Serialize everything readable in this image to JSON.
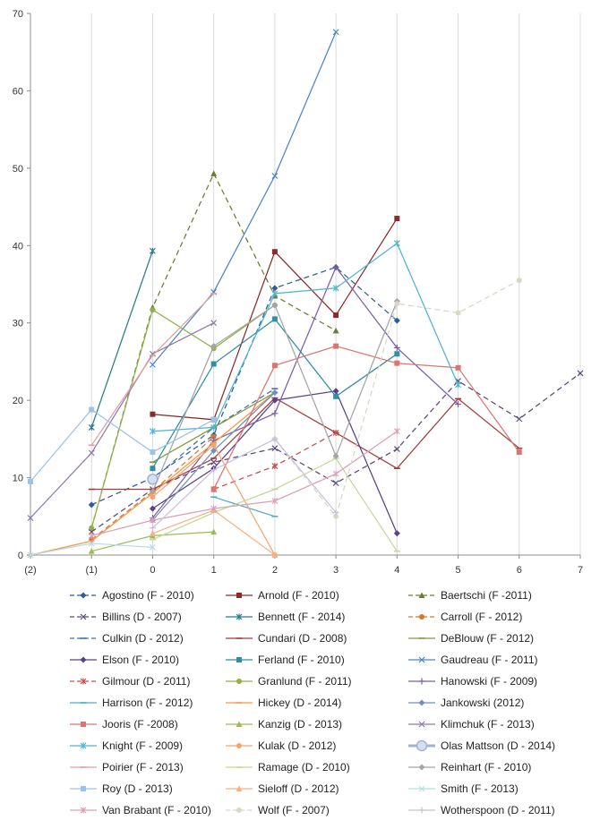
{
  "chart_data": {
    "type": "line",
    "title": "",
    "xlabel": "",
    "ylabel": "",
    "x_categories": [
      "(2)",
      "(1)",
      "0",
      "1",
      "2",
      "3",
      "4",
      "5",
      "6",
      "7"
    ],
    "ylim": [
      0,
      70
    ],
    "y_ticks": [
      0,
      10,
      20,
      30,
      40,
      50,
      60,
      70
    ],
    "grid": "vertical lines only",
    "legend": "bottom, 3 columns",
    "series": [
      {
        "name": "Agostino (F - 2010)",
        "color": "#2E5B9A",
        "dash": true,
        "marker": "diamond",
        "points": [
          [
            -1,
            6.5
          ],
          [
            0,
            10
          ],
          [
            1,
            15.5
          ],
          [
            2,
            34.5
          ],
          [
            3,
            37.2
          ],
          [
            4,
            30.3
          ]
        ]
      },
      {
        "name": "Arnold (F - 2010)",
        "color": "#8B2A2A",
        "dash": false,
        "marker": "square",
        "points": [
          [
            0,
            18.2
          ],
          [
            1,
            17.5
          ],
          [
            2,
            39.2
          ],
          [
            3,
            31.0
          ],
          [
            4,
            43.5
          ]
        ]
      },
      {
        "name": "Baertschi (F -2011)",
        "color": "#6B7B33",
        "dash": true,
        "marker": "triangle",
        "points": [
          [
            -1,
            3.5
          ],
          [
            0,
            32
          ],
          [
            1,
            49.3
          ],
          [
            2,
            33.5
          ],
          [
            3,
            29.0
          ]
        ]
      },
      {
        "name": "Billins (D - 2007)",
        "color": "#5A4A7A",
        "dash": true,
        "marker": "x",
        "points": [
          [
            -1,
            3.0
          ],
          [
            0,
            8.5
          ],
          [
            1,
            12.0
          ],
          [
            2,
            13.8
          ],
          [
            3,
            9.3
          ],
          [
            4,
            13.7
          ],
          [
            5,
            22.5
          ],
          [
            6,
            17.6
          ],
          [
            7,
            23.5
          ]
        ]
      },
      {
        "name": "Bennett (F - 2014)",
        "color": "#2C7B86",
        "dash": false,
        "marker": "star",
        "points": [
          [
            -1,
            16.5
          ],
          [
            0,
            39.3
          ]
        ]
      },
      {
        "name": "Carroll (F - 2012)",
        "color": "#D9752A",
        "dash": true,
        "marker": "circle",
        "points": [
          [
            -1,
            2.0
          ],
          [
            0,
            8.2
          ],
          [
            1,
            15.3
          ]
        ]
      },
      {
        "name": "Culkin (D - 2012)",
        "color": "#3D6FB5",
        "dash": true,
        "marker": "dash",
        "points": [
          [
            0,
            9.8
          ],
          [
            1,
            16.5
          ],
          [
            2,
            21.5
          ]
        ]
      },
      {
        "name": "Cundari (D - 2008)",
        "color": "#A33B3B",
        "dash": false,
        "marker": "dash",
        "points": [
          [
            -1,
            8.5
          ],
          [
            0,
            8.5
          ],
          [
            1,
            12.5
          ],
          [
            2,
            20.3
          ],
          [
            3,
            15.8
          ],
          [
            4,
            11.2
          ],
          [
            5,
            20.2
          ],
          [
            6,
            13.8
          ]
        ]
      },
      {
        "name": "DeBlouw (F - 2012)",
        "color": "#7F9A3A",
        "dash": false,
        "marker": "dash",
        "points": [
          [
            0,
            12.0
          ],
          [
            1,
            16.5
          ],
          [
            2,
            21.0
          ]
        ]
      },
      {
        "name": "Elson (F - 2010)",
        "color": "#5B3F8A",
        "dash": false,
        "marker": "diamond",
        "points": [
          [
            0,
            6.0
          ],
          [
            1,
            11.2
          ],
          [
            2,
            20.0
          ],
          [
            3,
            21.2
          ],
          [
            4,
            2.8
          ]
        ]
      },
      {
        "name": "Ferland (F - 2010)",
        "color": "#2F8FA6",
        "dash": false,
        "marker": "square",
        "points": [
          [
            0,
            11.2
          ],
          [
            1,
            24.7
          ],
          [
            2,
            30.5
          ],
          [
            3,
            20.5
          ],
          [
            4,
            26.0
          ]
        ]
      },
      {
        "name": "Gaudreau (F - 2011)",
        "color": "#4A86C8",
        "dash": false,
        "marker": "x",
        "points": [
          [
            0,
            24.6
          ],
          [
            1,
            34.0
          ],
          [
            2,
            49.0
          ],
          [
            3,
            67.6
          ]
        ]
      },
      {
        "name": "Gilmour (D - 2011)",
        "color": "#C0504D",
        "dash": true,
        "marker": "star",
        "points": [
          [
            1,
            8.5
          ],
          [
            2,
            11.5
          ],
          [
            3,
            15.8
          ]
        ]
      },
      {
        "name": "Granlund (F - 2011)",
        "color": "#8FB04A",
        "dash": false,
        "marker": "circle",
        "points": [
          [
            -1,
            3.5
          ],
          [
            0,
            31.7
          ],
          [
            1,
            26.7
          ],
          [
            2,
            32.3
          ]
        ]
      },
      {
        "name": "Hanowski (F - 2009)",
        "color": "#7B5FA8",
        "dash": false,
        "marker": "plus",
        "points": [
          [
            0,
            4.8
          ],
          [
            1,
            14.8
          ],
          [
            2,
            18.3
          ],
          [
            3,
            37.2
          ],
          [
            4,
            26.8
          ],
          [
            5,
            19.5
          ]
        ]
      },
      {
        "name": "Harrison (F - 2012)",
        "color": "#4BACC6",
        "dash": false,
        "marker": "dash",
        "points": [
          [
            1,
            7.5
          ],
          [
            2,
            5.0
          ]
        ]
      },
      {
        "name": "Hickey (D - 2014)",
        "color": "#F79646",
        "dash": false,
        "marker": "dash",
        "points": [
          [
            -2,
            0
          ],
          [
            -1,
            1.8
          ],
          [
            0,
            8.0
          ],
          [
            1,
            14.5
          ],
          [
            2,
            21.0
          ]
        ]
      },
      {
        "name": "Jankowski (2012)",
        "color": "#6F8FC0",
        "dash": false,
        "marker": "diamond",
        "points": [
          [
            0,
            4.5
          ],
          [
            1,
            13.5
          ],
          [
            2,
            21.0
          ]
        ]
      },
      {
        "name": "Jooris (F -2008)",
        "color": "#D9766F",
        "dash": false,
        "marker": "square",
        "points": [
          [
            1,
            8.5
          ],
          [
            2,
            24.5
          ],
          [
            3,
            27.0
          ],
          [
            4,
            24.8
          ],
          [
            5,
            24.2
          ],
          [
            6,
            13.3
          ]
        ]
      },
      {
        "name": "Kanzig (D - 2013)",
        "color": "#9BBB59",
        "dash": false,
        "marker": "triangle",
        "points": [
          [
            -1,
            0.5
          ],
          [
            0,
            2.5
          ],
          [
            1,
            3.0
          ]
        ]
      },
      {
        "name": "Klimchuk (F - 2013)",
        "color": "#8C7AAE",
        "dash": false,
        "marker": "x",
        "points": [
          [
            -2,
            4.8
          ],
          [
            -1,
            13.2
          ],
          [
            0,
            26.0
          ],
          [
            1,
            30.0
          ]
        ]
      },
      {
        "name": "Knight (F - 2009)",
        "color": "#4FB3D4",
        "dash": false,
        "marker": "star",
        "points": [
          [
            0,
            16.0
          ],
          [
            1,
            16.5
          ],
          [
            2,
            33.8
          ],
          [
            3,
            34.5
          ],
          [
            4,
            40.3
          ],
          [
            5,
            22.0
          ]
        ]
      },
      {
        "name": "Kulak (D - 2012)",
        "color": "#F5A26E",
        "dash": false,
        "marker": "circle",
        "points": [
          [
            0,
            7.5
          ],
          [
            1,
            14.2
          ],
          [
            2,
            0.0
          ]
        ]
      },
      {
        "name": "Olas Mattson (D - 2014)",
        "color": "#9FB3D9",
        "dash": false,
        "marker": "big-circle",
        "points": [
          [
            0,
            9.8
          ]
        ]
      },
      {
        "name": "Poirier (F - 2013)",
        "color": "#E0A0A0",
        "dash": false,
        "marker": "dash",
        "points": [
          [
            -1,
            14.2
          ],
          [
            0,
            25.8
          ],
          [
            1,
            33.8
          ]
        ]
      },
      {
        "name": "Ramage (D - 2010)",
        "color": "#C4D79B",
        "dash": false,
        "marker": "dash",
        "points": [
          [
            0,
            2.0
          ],
          [
            1,
            5.5
          ],
          [
            2,
            8.5
          ],
          [
            3,
            12.5
          ],
          [
            4,
            0.5
          ]
        ]
      },
      {
        "name": "Reinhart (F - 2010)",
        "color": "#A5A5A5",
        "dash": false,
        "marker": "diamond",
        "points": [
          [
            0,
            8.2
          ],
          [
            1,
            27.0
          ],
          [
            2,
            32.3
          ],
          [
            3,
            12.8
          ],
          [
            4,
            32.8
          ]
        ]
      },
      {
        "name": "Roy (D - 2013)",
        "color": "#9DC3E6",
        "dash": false,
        "marker": "square",
        "points": [
          [
            -2,
            9.5
          ],
          [
            -1,
            18.8
          ],
          [
            0,
            13.3
          ],
          [
            1,
            17.5
          ]
        ]
      },
      {
        "name": "Sieloff (D - 2012)",
        "color": "#F4B183",
        "dash": false,
        "marker": "triangle",
        "points": [
          [
            0,
            2.8
          ],
          [
            1,
            5.8
          ],
          [
            2,
            0.0
          ]
        ]
      },
      {
        "name": "Smith (F - 2013)",
        "color": "#B4DDE8",
        "dash": false,
        "marker": "x",
        "points": [
          [
            -2,
            0
          ],
          [
            -1,
            1.5
          ],
          [
            0,
            1.0
          ]
        ]
      },
      {
        "name": "Van Brabant (F - 2010)",
        "color": "#D9A0B8",
        "dash": false,
        "marker": "star",
        "points": [
          [
            -1,
            2.5
          ],
          [
            0,
            4.5
          ],
          [
            1,
            6.0
          ],
          [
            2,
            7.0
          ],
          [
            3,
            10.5
          ],
          [
            4,
            16.0
          ]
        ]
      },
      {
        "name": "Wolf (F - 2007)",
        "color": "#D8D8C6",
        "dash": true,
        "marker": "circle",
        "points": [
          [
            2,
            15.0
          ],
          [
            3,
            5.0
          ],
          [
            4,
            32.5
          ],
          [
            5,
            31.3
          ],
          [
            6,
            35.5
          ]
        ]
      },
      {
        "name": "Wotherspoon (D - 2011)",
        "color": "#C8C0DA",
        "dash": false,
        "marker": "plus",
        "points": [
          [
            0,
            3.5
          ],
          [
            1,
            11.0
          ],
          [
            2,
            15.0
          ],
          [
            3,
            5.5
          ]
        ]
      }
    ]
  }
}
